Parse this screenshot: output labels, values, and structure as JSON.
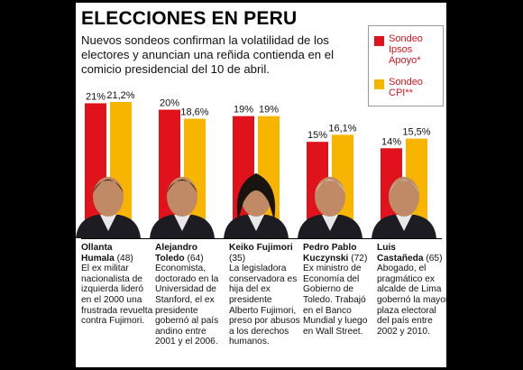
{
  "header": {
    "title": "ELECCIONES EN PERU",
    "subtitle": "Nuevos sondeos confirman la volatilidad de los electores y anuncian una reñida contienda en el comicio presidencial del 10 de abril."
  },
  "legend": [
    {
      "label": "Sondeo Ipsos Apoyo*",
      "color": "#e0121c"
    },
    {
      "label": "Sondeo CPI**",
      "color": "#f7b500"
    }
  ],
  "colors": {
    "ipsos": "#e0121c",
    "cpi": "#f7b500",
    "label_text": "#111111"
  },
  "chart_data": {
    "type": "bar",
    "categories": [
      "Ollanta Humala",
      "Alejandro Toledo",
      "Keiko Fujimori",
      "Pedro Pablo Kuczynski",
      "Luis Castañeda"
    ],
    "series": [
      {
        "name": "Sondeo Ipsos Apoyo*",
        "values": [
          21,
          20,
          19,
          15,
          14
        ],
        "labels": [
          "21%",
          "20%",
          "19%",
          "15%",
          "14%"
        ]
      },
      {
        "name": "Sondeo CPI**",
        "values": [
          21.2,
          18.6,
          19,
          16.1,
          15.5
        ],
        "labels": [
          "21,2%",
          "18,6%",
          "19%",
          "16,1%",
          "15,5%"
        ]
      }
    ],
    "ylim": [
      0,
      21.2
    ],
    "grid": false,
    "legend_position": "top-right"
  },
  "candidates": [
    {
      "name_line1": "Ollanta",
      "name_line2": "Humala",
      "age": "(48)",
      "bio": "El ex militar nacionalista de izquierda lideró en el 2000 una frustrada revuelta contra Fujimori."
    },
    {
      "name_line1": "Alejandro",
      "name_line2": "Toledo",
      "age": "(64)",
      "bio": "Economista, doctorado en la Universidad de Stanford, el ex presidente gobernó al país andino entre 2001 y el 2006."
    },
    {
      "name_line1": "Keiko Fujimori",
      "name_line2": "",
      "age": "(35)",
      "bio": "La legisladora conservadora es hija del ex presidente Alberto Fujimori, preso por abusos a los derechos humanos."
    },
    {
      "name_line1": "Pedro Pablo",
      "name_line2": "Kuczynski",
      "age": "(72)",
      "bio": "Ex ministro de Economía del Gobierno de Toledo. Trabajó en el Banco Mundial y luego en Wall Street."
    },
    {
      "name_line1": "Luis",
      "name_line2": "Castañeda",
      "age": "(65)",
      "bio": "Abogado, el pragmático ex alcalde de Lima gobernó la mayor plaza electoral del país entre 2002 y 2010."
    }
  ]
}
